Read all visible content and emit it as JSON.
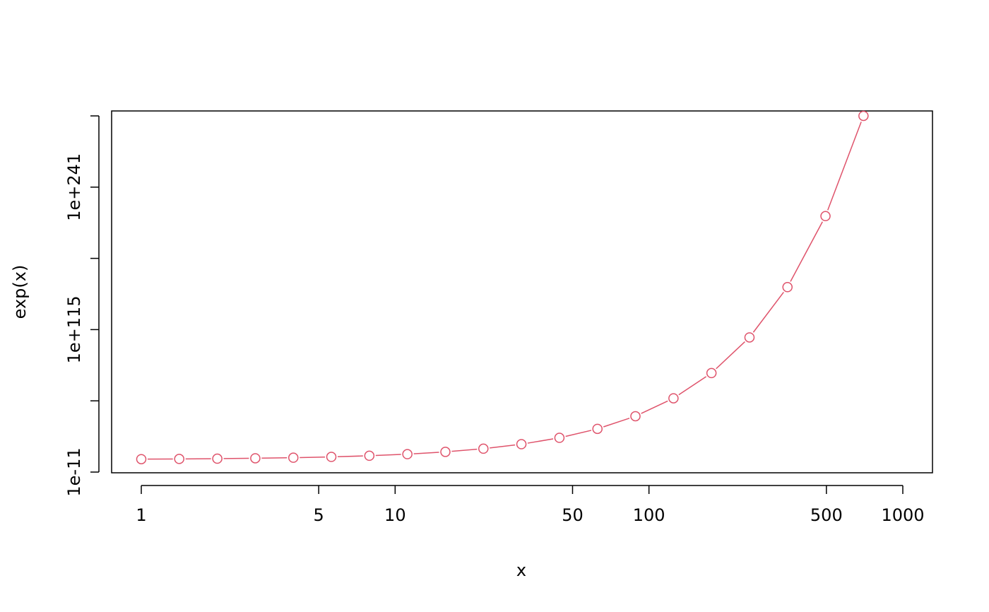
{
  "chart_data": {
    "type": "line",
    "style": "points-and-lines",
    "title": "",
    "xlabel": "x",
    "ylabel": "exp(x)",
    "x_scale": "log",
    "y_scale": "log",
    "xlim": [
      1,
      1000
    ],
    "ylim": [
      1e-11,
      1e+304
    ],
    "xticks": [
      1,
      5,
      10,
      50,
      100,
      500,
      1000
    ],
    "xtick_labels": [
      "1",
      "5",
      "10",
      "50",
      "100",
      "500",
      "1000"
    ],
    "yticks": [
      1e-11,
      1e+52,
      1e+115,
      1e+178,
      1e+241,
      1e+304
    ],
    "ytick_labels": [
      "1e-11",
      "",
      "1e+115",
      "",
      "1e+241",
      ""
    ],
    "grid": false,
    "color": "#DF536B",
    "series": [
      {
        "x": [
          1,
          1.411,
          1.993,
          2.813,
          3.972,
          5.607,
          7.915,
          11.175,
          15.777,
          22.27,
          31.44,
          44.39,
          62.67,
          88.45,
          124.9,
          176.3,
          248.9,
          351.3,
          495.9,
          700
        ],
        "y": [
          2.718,
          4.1,
          7.34,
          16.66,
          53.1,
          272.4,
          2738,
          71300.0,
          7110000.0,
          4700000000.0,
          45100000000000.0,
          1.9e+19,
          1.65e+27,
          2.59e+38,
          1.75e+54,
          3.68e+76,
          1.26e+108,
          3.72e+152,
          2.34e+215,
          1.01e+304
        ]
      }
    ]
  }
}
